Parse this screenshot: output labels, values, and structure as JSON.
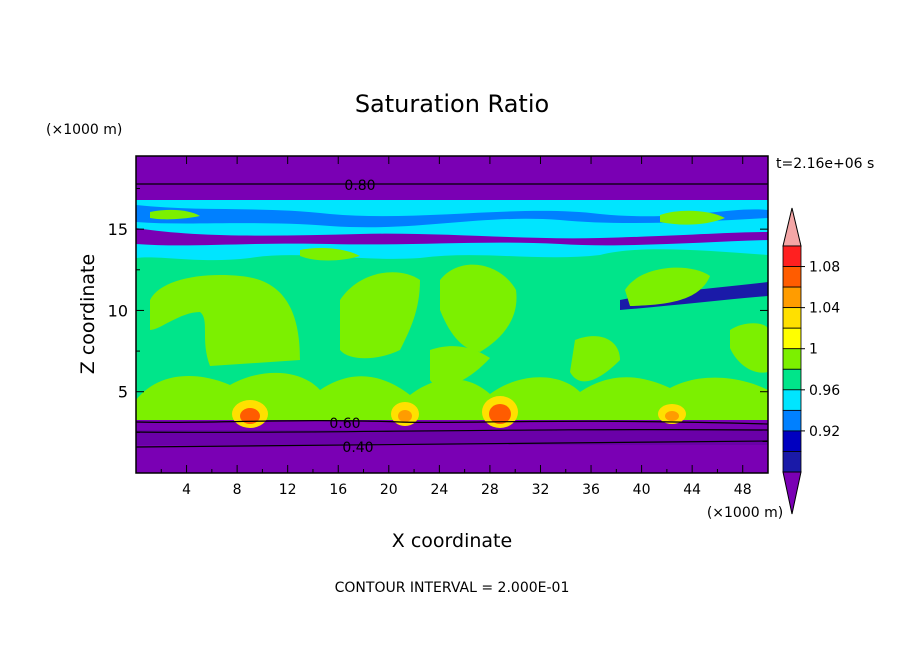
{
  "chart_data": {
    "type": "heatmap",
    "title": "Saturation Ratio",
    "xlabel": "X coordinate",
    "ylabel": "Z coordinate",
    "x_unit": "(×1000 m)",
    "y_unit": "(×1000 m)",
    "time_label": "t=2.16e+06 s",
    "footer": "CONTOUR INTERVAL = 2.000E-01",
    "xlim": [
      0,
      50
    ],
    "ylim": [
      0,
      19.5
    ],
    "x_ticks": [
      "4",
      "8",
      "12",
      "16",
      "20",
      "24",
      "28",
      "32",
      "36",
      "40",
      "44",
      "48"
    ],
    "y_ticks": [
      "5",
      "10",
      "15"
    ],
    "contour_labels": [
      "0.80",
      "0.60",
      "0.40"
    ],
    "colorbar": {
      "labels": [
        "1.08",
        "1.04",
        "1",
        "0.96",
        "0.92"
      ],
      "colors": [
        "#f4a6a6",
        "#ff2020",
        "#ff5c00",
        "#ff9c00",
        "#ffe000",
        "#ffff00",
        "#7cf000",
        "#00e58a",
        "#00e5ff",
        "#0080ff",
        "#0000c0",
        "#1a1aa8",
        "#7a00b4"
      ]
    },
    "bands": [
      {
        "z_range": [
          0,
          3.3
        ],
        "value_min": 0.4,
        "value_max": 0.8,
        "color": "#7a00b4"
      },
      {
        "z_range": [
          3.3,
          9.0
        ],
        "value_min": 0.96,
        "value_max": 1.02,
        "color": "#00e58a"
      },
      {
        "z_range": [
          9.0,
          14.0
        ],
        "value_min": 0.96,
        "value_max": 1.0,
        "color": "#00e58a"
      },
      {
        "z_range": [
          14.0,
          17.2
        ],
        "value_min": 0.9,
        "value_max": 1.0,
        "color": "#00e5ff"
      },
      {
        "z_range": [
          17.2,
          19.5
        ],
        "value_min": 0.8,
        "value_max": 0.9,
        "color": "#7a00b4"
      }
    ],
    "peaks": [
      {
        "x": 9.5,
        "z": 4.0,
        "value": 1.08
      },
      {
        "x": 21.5,
        "z": 4.0,
        "value": 1.06
      },
      {
        "x": 29.5,
        "z": 4.0,
        "value": 1.08
      },
      {
        "x": 42.5,
        "z": 4.0,
        "value": 1.04
      }
    ]
  }
}
